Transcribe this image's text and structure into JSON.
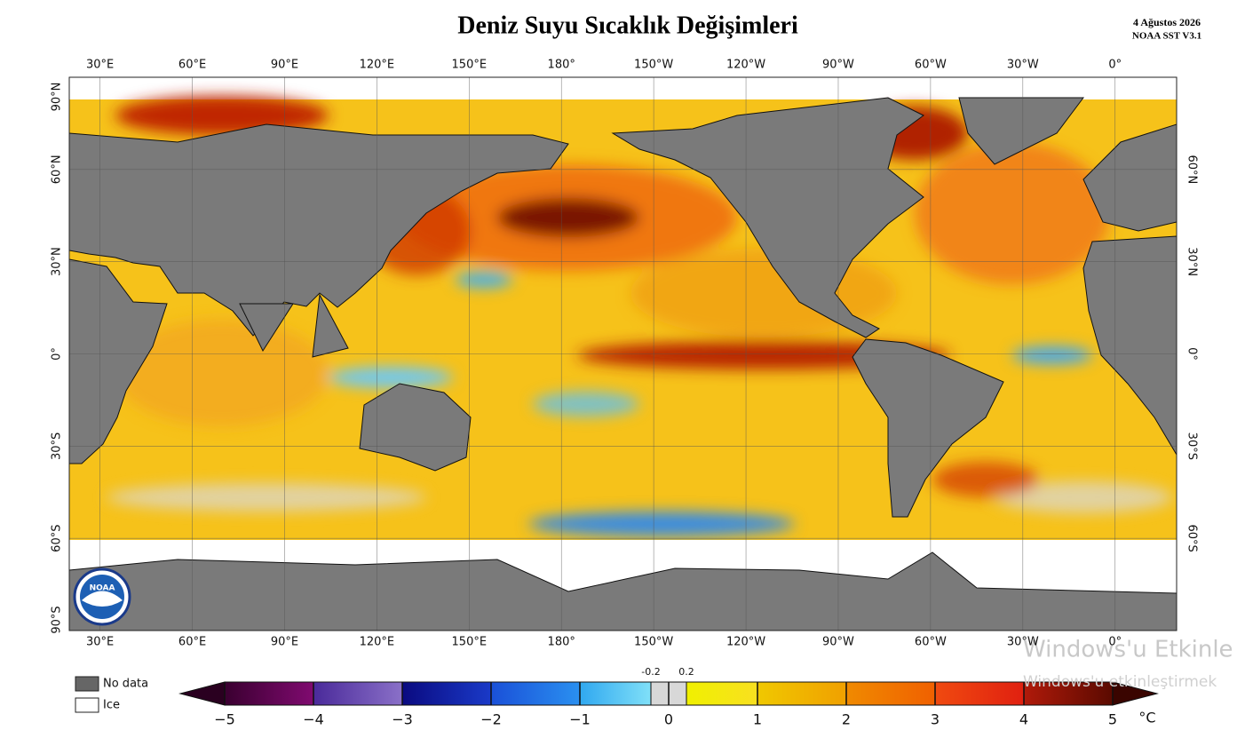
{
  "title": "Deniz Suyu Sıcaklık Değişimleri",
  "date": "4 Ağustos 2026",
  "source": "NOAA SST V3.1",
  "logo_text": "NOAA",
  "map": {
    "lon_ticks": [
      {
        "value": 30,
        "label": "30°E"
      },
      {
        "value": 60,
        "label": "60°E"
      },
      {
        "value": 90,
        "label": "90°E"
      },
      {
        "value": 120,
        "label": "120°E"
      },
      {
        "value": 150,
        "label": "150°E"
      },
      {
        "value": 180,
        "label": "180°"
      },
      {
        "value": -150,
        "label": "150°W"
      },
      {
        "value": -120,
        "label": "120°W"
      },
      {
        "value": -90,
        "label": "90°W"
      },
      {
        "value": -60,
        "label": "60°W"
      },
      {
        "value": -30,
        "label": "30°W"
      },
      {
        "value": 0,
        "label": "0°"
      }
    ],
    "lat_ticks": [
      {
        "value": 90,
        "label": "90°N"
      },
      {
        "value": 60,
        "label": "60°N"
      },
      {
        "value": 30,
        "label": "30°N"
      },
      {
        "value": 0,
        "label": "0°"
      },
      {
        "value": -30,
        "label": "30°S"
      },
      {
        "value": -60,
        "label": "60°S"
      },
      {
        "value": -90,
        "label": "90°S"
      }
    ],
    "right_lat_ticks": [
      {
        "value": 60,
        "label": "60°N"
      },
      {
        "value": 30,
        "label": "30°N"
      },
      {
        "value": 0,
        "label": "0°"
      },
      {
        "value": -30,
        "label": "30°S"
      },
      {
        "value": -60,
        "label": "60°S"
      }
    ],
    "grid": true
  },
  "legend": [
    {
      "label": "No data",
      "color": "#666666"
    },
    {
      "label": "Ice",
      "color": "#ffffff"
    }
  ],
  "colorbar": {
    "ticks": [
      {
        "value": -5,
        "label": "−5"
      },
      {
        "value": -4,
        "label": "−4"
      },
      {
        "value": -3,
        "label": "−3"
      },
      {
        "value": -2,
        "label": "−2"
      },
      {
        "value": -1,
        "label": "−1"
      },
      0,
      1,
      2,
      3,
      4,
      5
    ],
    "inner_ticks": [
      -0.2,
      0.2
    ],
    "unit": "°C",
    "colors": [
      [
        "#3a0030",
        "#800a70"
      ],
      [
        "#4a2a9a",
        "#8a70c8"
      ],
      [
        "#0a0a80",
        "#1a3ac8"
      ],
      [
        "#1a50d8",
        "#2a90f0"
      ],
      [
        "#30a8f0",
        "#80e0f8"
      ],
      [
        "#d8d8d8",
        "#d8d8d8"
      ],
      [
        "#f0f000",
        "#f8e020"
      ],
      [
        "#f0c800",
        "#f0a000"
      ],
      [
        "#f08a00",
        "#f06000"
      ],
      [
        "#f04a10",
        "#e02010"
      ],
      [
        "#b01a0a",
        "#5a0a00"
      ]
    ],
    "under_color": "#2a0020",
    "over_color": "#3a0500"
  },
  "watermark": {
    "title": "Windows'u Etkinle",
    "subtitle": "Windows'u etkinleştirmek"
  }
}
